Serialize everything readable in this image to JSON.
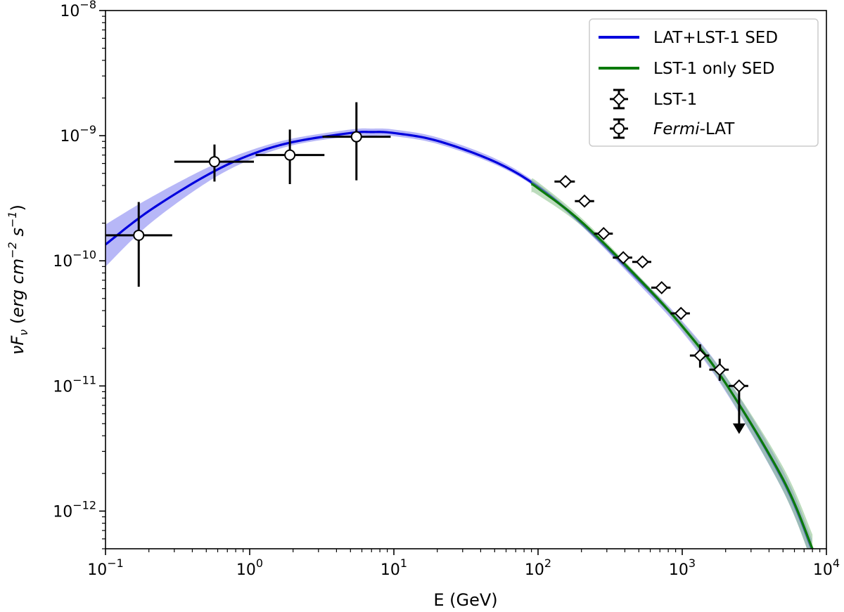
{
  "chart_data": {
    "type": "scatter",
    "xlabel": "E (GeV)",
    "ylabel": {
      "base": "νF",
      "base_sub": "ν",
      "units_prefix": " (",
      "u1": "erg cm",
      "u1_sup": "−2",
      "u2": " s",
      "u2_sup": "−1",
      "units_suffix": ")"
    },
    "x_scale": "log",
    "y_scale": "log",
    "xlim": [
      0.1,
      10000
    ],
    "ylim": [
      5e-13,
      1e-08
    ],
    "grid": false,
    "legend_position": "top-right",
    "x_ticks": [
      {
        "value": 0.1,
        "base": "10",
        "exp": "−1"
      },
      {
        "value": 1,
        "base": "10",
        "exp": "0"
      },
      {
        "value": 10,
        "base": "10",
        "exp": "1"
      },
      {
        "value": 100,
        "base": "10",
        "exp": "2"
      },
      {
        "value": 1000,
        "base": "10",
        "exp": "3"
      },
      {
        "value": 10000,
        "base": "10",
        "exp": "4"
      }
    ],
    "y_ticks": [
      {
        "value": 1e-12,
        "base": "10",
        "exp": "−12"
      },
      {
        "value": 1e-11,
        "base": "10",
        "exp": "−11"
      },
      {
        "value": 1e-10,
        "base": "10",
        "exp": "−10"
      },
      {
        "value": 1e-09,
        "base": "10",
        "exp": "−9"
      },
      {
        "value": 1e-08,
        "base": "10",
        "exp": "−8"
      }
    ],
    "series": [
      {
        "name": "LAT+LST-1 SED",
        "kind": "line",
        "color": "#0000dd",
        "band_color": "#7b7bf0",
        "x": [
          0.1,
          0.2,
          0.5,
          1,
          2,
          5,
          7,
          10,
          20,
          50,
          100,
          200,
          500,
          1000,
          2000,
          5000,
          7900
        ],
        "y": [
          1.35e-10,
          2.5e-10,
          4.8e-10,
          7e-10,
          8.9e-10,
          1.05e-09,
          1.07e-09,
          1.05e-09,
          9.1e-10,
          6.2e-10,
          3.9e-10,
          2e-10,
          7e-11,
          3e-11,
          1.05e-11,
          1.75e-12,
          5e-13
        ],
        "band_lower": [
          9e-11,
          1.95e-10,
          4.2e-10,
          6.4e-10,
          8.4e-10,
          9.9e-10,
          1e-09,
          9.9e-10,
          8.6e-10,
          5.9e-10,
          3.75e-10,
          1.9e-10,
          6.5e-11,
          2.7e-11,
          9e-12,
          1.45e-12,
          4e-13
        ],
        "band_upper": [
          1.95e-10,
          3.15e-10,
          5.5e-10,
          7.6e-10,
          9.5e-10,
          1.12e-09,
          1.14e-09,
          1.12e-09,
          9.7e-10,
          6.6e-10,
          4.1e-10,
          2.1e-10,
          7.5e-11,
          3.3e-11,
          1.2e-11,
          2.1e-12,
          6e-13
        ]
      },
      {
        "name": "LST-1 only SED",
        "kind": "line",
        "color": "#0a7a0a",
        "band_color": "#86bf86",
        "x": [
          90,
          100,
          200,
          500,
          1000,
          2000,
          5000,
          8000
        ],
        "y": [
          4.1e-10,
          3.8e-10,
          2.05e-10,
          7.2e-11,
          3e-11,
          1.05e-11,
          1.8e-12,
          5e-13
        ],
        "band_lower": [
          3.5e-10,
          3.35e-10,
          1.9e-10,
          6.8e-11,
          2.8e-11,
          9.2e-12,
          1.45e-12,
          3.8e-13
        ],
        "band_upper": [
          4.5e-10,
          4.25e-10,
          2.2e-10,
          7.6e-11,
          3.2e-11,
          1.2e-11,
          2.25e-12,
          6.5e-13
        ]
      },
      {
        "name": "LST-1",
        "kind": "points",
        "marker": "diamond",
        "points": [
          {
            "x": 155,
            "y": 4.3e-10,
            "xlo": 130,
            "xhi": 180,
            "ylo": 4e-10,
            "yhi": 4.6e-10
          },
          {
            "x": 210,
            "y": 3e-10,
            "xlo": 180,
            "xhi": 245,
            "ylo": 2.8e-10,
            "yhi": 3.2e-10
          },
          {
            "x": 285,
            "y": 1.65e-10,
            "xlo": 245,
            "xhi": 330,
            "ylo": 1.5e-10,
            "yhi": 1.8e-10
          },
          {
            "x": 390,
            "y": 1.06e-10,
            "xlo": 330,
            "xhi": 450,
            "ylo": 9.8e-11,
            "yhi": 1.14e-10
          },
          {
            "x": 530,
            "y": 9.8e-11,
            "xlo": 450,
            "xhi": 610,
            "ylo": 9e-11,
            "yhi": 1.06e-10
          },
          {
            "x": 720,
            "y": 6.1e-11,
            "xlo": 610,
            "xhi": 830,
            "ylo": 5.6e-11,
            "yhi": 6.6e-11
          },
          {
            "x": 980,
            "y": 3.8e-11,
            "xlo": 830,
            "xhi": 1130,
            "ylo": 3.4e-11,
            "yhi": 4.2e-11
          },
          {
            "x": 1330,
            "y": 1.75e-11,
            "xlo": 1130,
            "xhi": 1540,
            "ylo": 1.4e-11,
            "yhi": 2.15e-11
          },
          {
            "x": 1820,
            "y": 1.35e-11,
            "xlo": 1540,
            "xhi": 2100,
            "ylo": 1.1e-11,
            "yhi": 1.65e-11
          },
          {
            "x": 2480,
            "y": 1e-11,
            "xlo": 2100,
            "xhi": 2870,
            "ylo": 4.3e-12,
            "yhi": 1e-11,
            "upper_limit": true
          }
        ]
      },
      {
        "name": "Fermi-LAT",
        "name_italic": "Fermi",
        "name_rest": "-LAT",
        "kind": "points",
        "marker": "circle",
        "points": [
          {
            "x": 0.17,
            "y": 1.6e-10,
            "xlo": 0.1,
            "xhi": 0.29,
            "ylo": 6.2e-11,
            "yhi": 2.95e-10
          },
          {
            "x": 0.57,
            "y": 6.2e-10,
            "xlo": 0.3,
            "xhi": 1.07,
            "ylo": 4.3e-10,
            "yhi": 8.5e-10
          },
          {
            "x": 1.9,
            "y": 7e-10,
            "xlo": 1.1,
            "xhi": 3.3,
            "ylo": 4.1e-10,
            "yhi": 1.12e-09
          },
          {
            "x": 5.5,
            "y": 9.8e-10,
            "xlo": 3.2,
            "xhi": 9.5,
            "ylo": 4.4e-10,
            "yhi": 1.85e-09
          }
        ]
      }
    ]
  }
}
